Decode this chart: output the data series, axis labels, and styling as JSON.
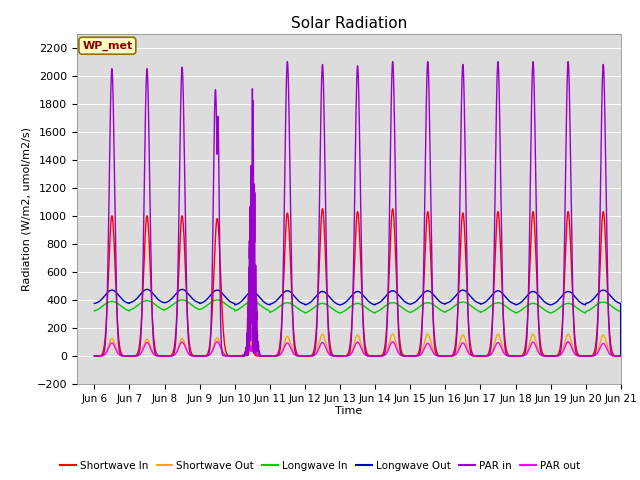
{
  "title": "Solar Radiation",
  "ylabel": "Radiation (W/m2, umol/m2/s)",
  "xlabel": "Time",
  "xlim_days": [
    5.5,
    21.0
  ],
  "ylim": [
    -200,
    2300
  ],
  "yticks": [
    -200,
    0,
    200,
    400,
    600,
    800,
    1000,
    1200,
    1400,
    1600,
    1800,
    2000,
    2200
  ],
  "xtick_labels": [
    "Jun 6",
    "Jun 7",
    "Jun 8",
    "Jun 9",
    "Jun 10",
    "Jun 11",
    "Jun 12",
    "Jun 13",
    "Jun 14",
    "Jun 15",
    "Jun 16",
    "Jun 17",
    "Jun 18",
    "Jun 19",
    "Jun 20",
    "Jun 21"
  ],
  "xtick_positions": [
    6,
    7,
    8,
    9,
    10,
    11,
    12,
    13,
    14,
    15,
    16,
    17,
    18,
    19,
    20,
    21
  ],
  "station_label": "WP_met",
  "station_box_color": "#FFFFC0",
  "station_box_edge": "#8B7000",
  "station_text_color": "#8B0000",
  "background_color": "#DCDCDC",
  "grid_color": "#FFFFFF",
  "colors": {
    "shortwave_in": "#FF0000",
    "shortwave_out": "#FFA500",
    "longwave_in": "#00CC00",
    "longwave_out": "#0000CC",
    "par_in": "#9900CC",
    "par_out": "#FF00FF"
  },
  "legend_labels": [
    "Shortwave In",
    "Shortwave Out",
    "Longwave In",
    "Longwave Out",
    "PAR in",
    "PAR out"
  ],
  "start_day": 6,
  "end_day": 21
}
